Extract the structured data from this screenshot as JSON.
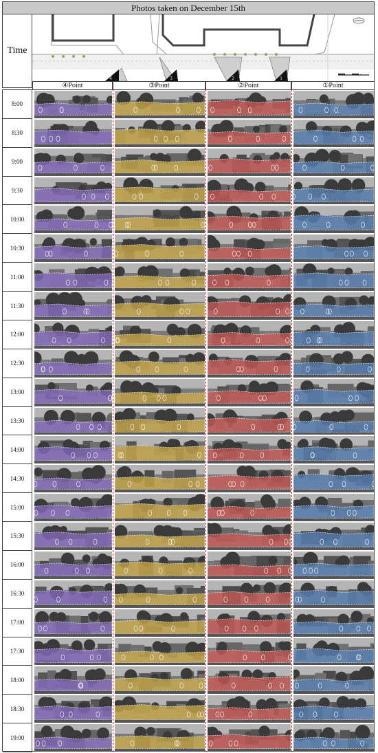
{
  "title": "Photos taken on December 15th",
  "time_header": "Time",
  "points": [
    {
      "label": "④Point",
      "color": "#8a6fc7"
    },
    {
      "label": "③Point",
      "color": "#d4b24a"
    },
    {
      "label": "②Point",
      "color": "#d45a57"
    },
    {
      "label": "①Point",
      "color": "#5a86c0"
    }
  ],
  "plan_markers": [
    "4",
    "3",
    "2",
    "1"
  ],
  "times": [
    "8:00",
    "8:30",
    "9:00",
    "9:30",
    "10:00",
    "10:30",
    "11:00",
    "11:30",
    "12:00",
    "12:30",
    "13:00",
    "13:30",
    "14:00",
    "14:30",
    "15:00",
    "15:30",
    "16:00",
    "16:30",
    "17:00",
    "17:30",
    "18:00",
    "18:30",
    "19:00"
  ]
}
